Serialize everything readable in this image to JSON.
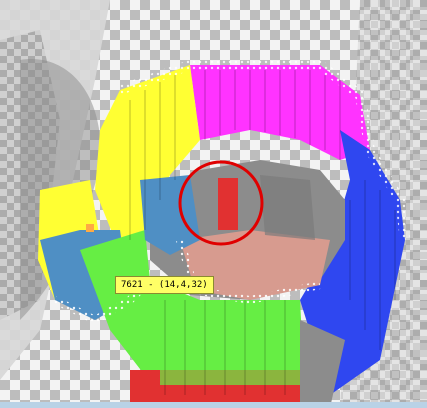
{
  "viewer": {
    "tooltip_text": "7621 - (14,4,32)",
    "stats": {
      "line1": "",
      "line2": ""
    },
    "selection_ring_color": "#e00000",
    "floor_pattern": "checkerboard",
    "segment_colors": {
      "magenta": "#ff33ff",
      "yellow": "#ffff33",
      "blue": "#2f47f0",
      "green": "#66ee44",
      "gray": "#8c8c8c",
      "steel_blue": "#4f8fc4",
      "salmon": "#d79b8f",
      "red": "#e13131"
    }
  }
}
